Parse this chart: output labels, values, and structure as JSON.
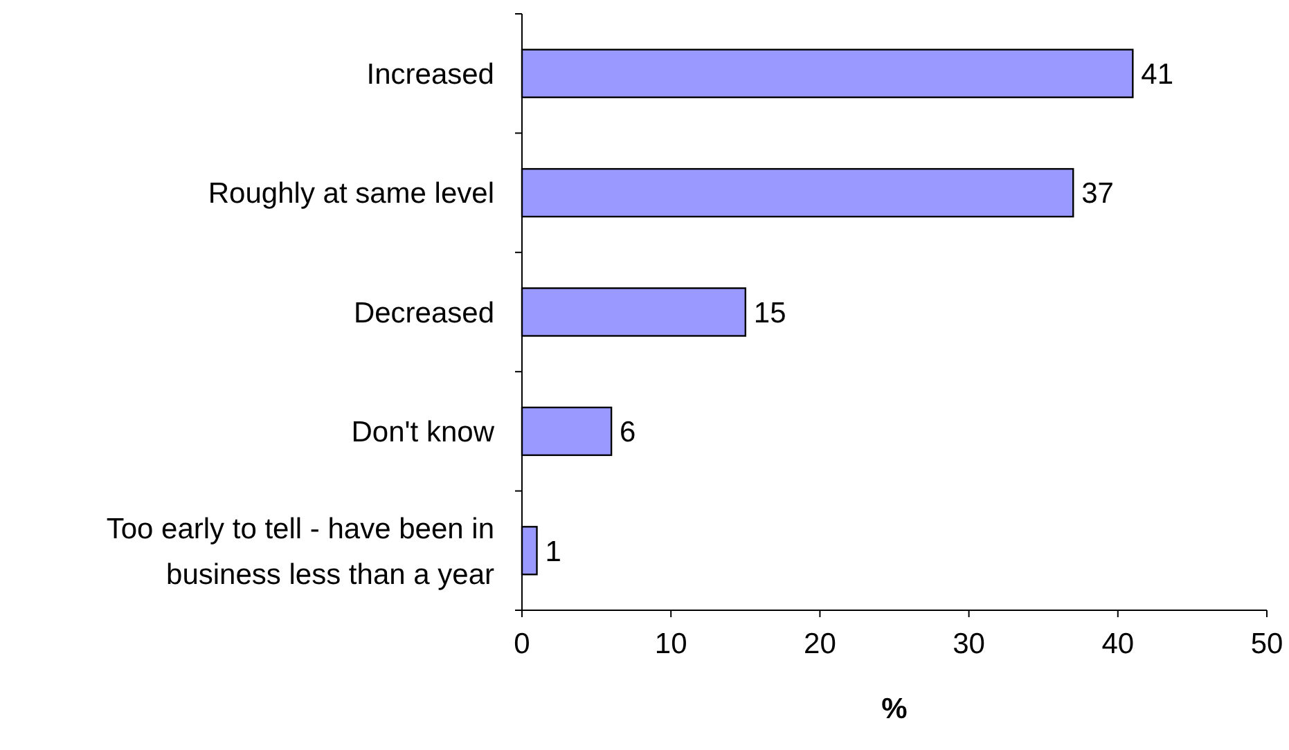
{
  "chart_data": {
    "type": "bar",
    "orientation": "horizontal",
    "categories": [
      "Increased",
      "Roughly at same level",
      "Decreased",
      "Don't know",
      "Too early to tell - have been in business less than a year"
    ],
    "values": [
      41,
      37,
      15,
      6,
      1
    ],
    "color": "#9999ff",
    "xlim": [
      0,
      50
    ],
    "xticks": [
      0,
      10,
      20,
      30,
      40,
      50
    ],
    "xlabel": "%",
    "data_labels": true
  }
}
